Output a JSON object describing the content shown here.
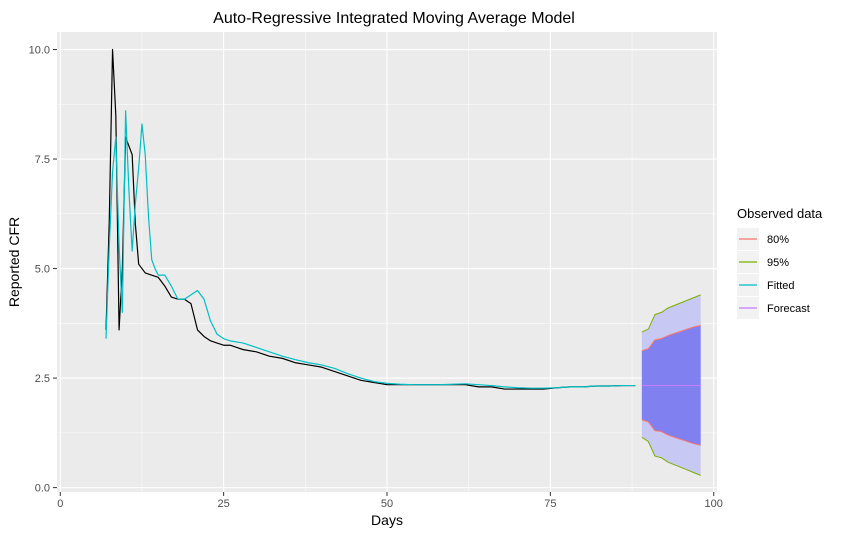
{
  "chart_data": {
    "type": "line",
    "title": "Auto-Regressive Integrated Moving Average Model",
    "xlabel": "Days",
    "ylabel": "Reported CFR",
    "xlim": [
      -0.5,
      100.5
    ],
    "ylim": [
      -0.1,
      10.4
    ],
    "x_ticks": [
      0,
      25,
      50,
      75,
      100
    ],
    "x_tick_labels": [
      "0",
      "25",
      "50",
      "75",
      "100"
    ],
    "y_ticks": [
      0,
      2.5,
      5,
      7.5,
      10
    ],
    "y_tick_labels": [
      "0.0",
      "2.5",
      "5.0",
      "7.5",
      "10.0"
    ],
    "grid": true,
    "legend": {
      "title": "Observed data",
      "position": "right",
      "entries": [
        "80%",
        "95%",
        "Fitted",
        "Forecast"
      ]
    },
    "colors": {
      "observed": "#000000",
      "fitted": "#00BFC4",
      "ci80_line": "#F8766D",
      "ci95_line": "#7CAE00",
      "forecast": "#C77CFF",
      "ci80_fill": "#8080F0",
      "ci95_fill": "#C8C8F4",
      "panel": "#EBEBEB",
      "grid": "#FFFFFF"
    },
    "series": [
      {
        "name": "",
        "role": "observed",
        "x": [
          7,
          7.5,
          8,
          8.5,
          9,
          9.5,
          10,
          10.5,
          11,
          11.5,
          12,
          13,
          14,
          15,
          16,
          17,
          18,
          19,
          20,
          21,
          22,
          23,
          24,
          25,
          26,
          27,
          28,
          30,
          32,
          34,
          36,
          38,
          40,
          42,
          44,
          46,
          48,
          50,
          52,
          54,
          56,
          58,
          60,
          62,
          64,
          66,
          68,
          70,
          72,
          74,
          76,
          78,
          80,
          82,
          84,
          86,
          88
        ],
        "y": [
          3.6,
          6.1,
          10.0,
          8.5,
          3.6,
          5.0,
          8.0,
          7.8,
          7.6,
          6.0,
          5.1,
          4.9,
          4.85,
          4.8,
          4.6,
          4.35,
          4.3,
          4.3,
          4.2,
          3.6,
          3.45,
          3.35,
          3.3,
          3.25,
          3.25,
          3.2,
          3.15,
          3.1,
          3.0,
          2.95,
          2.85,
          2.8,
          2.75,
          2.65,
          2.55,
          2.45,
          2.4,
          2.35,
          2.35,
          2.35,
          2.35,
          2.35,
          2.35,
          2.35,
          2.3,
          2.3,
          2.25,
          2.25,
          2.25,
          2.25,
          2.28,
          2.3,
          2.3,
          2.32,
          2.32,
          2.33,
          2.33
        ]
      },
      {
        "name": "Fitted",
        "role": "fitted",
        "x": [
          7,
          7.5,
          8,
          8.5,
          9,
          9.5,
          10,
          10.5,
          11,
          11.5,
          12,
          12.5,
          13,
          13.5,
          14,
          14.5,
          15,
          16,
          17,
          18,
          19,
          20,
          21,
          22,
          23,
          24,
          25,
          26,
          28,
          30,
          32,
          34,
          36,
          38,
          40,
          42,
          44,
          46,
          48,
          50,
          52,
          54,
          56,
          58,
          60,
          62,
          64,
          66,
          68,
          70,
          72,
          74,
          76,
          78,
          80,
          82,
          84,
          86,
          88
        ],
        "y": [
          3.4,
          5.5,
          7.2,
          8.0,
          5.5,
          4.0,
          8.6,
          6.8,
          5.4,
          6.5,
          7.3,
          8.3,
          7.6,
          6.2,
          5.2,
          5.0,
          4.85,
          4.85,
          4.6,
          4.3,
          4.3,
          4.4,
          4.5,
          4.3,
          3.8,
          3.5,
          3.4,
          3.35,
          3.3,
          3.2,
          3.1,
          3.0,
          2.92,
          2.85,
          2.8,
          2.72,
          2.6,
          2.5,
          2.42,
          2.38,
          2.36,
          2.35,
          2.35,
          2.35,
          2.36,
          2.37,
          2.35,
          2.33,
          2.3,
          2.28,
          2.27,
          2.27,
          2.28,
          2.3,
          2.3,
          2.32,
          2.32,
          2.33,
          2.33
        ]
      },
      {
        "name": "Forecast",
        "role": "forecast",
        "x": [
          89,
          98
        ],
        "y": [
          2.33,
          2.33
        ]
      }
    ],
    "intervals": {
      "x": [
        89,
        90,
        91,
        92,
        93,
        94,
        95,
        96,
        97,
        98
      ],
      "lo80": [
        1.55,
        1.5,
        1.3,
        1.28,
        1.2,
        1.15,
        1.1,
        1.05,
        1.0,
        0.97
      ],
      "hi80": [
        3.12,
        3.17,
        3.37,
        3.4,
        3.47,
        3.52,
        3.57,
        3.62,
        3.67,
        3.7
      ],
      "lo95": [
        1.15,
        1.05,
        0.72,
        0.68,
        0.58,
        0.52,
        0.46,
        0.4,
        0.34,
        0.28
      ],
      "hi95": [
        3.55,
        3.62,
        3.95,
        4.0,
        4.1,
        4.16,
        4.22,
        4.28,
        4.34,
        4.4
      ]
    }
  }
}
